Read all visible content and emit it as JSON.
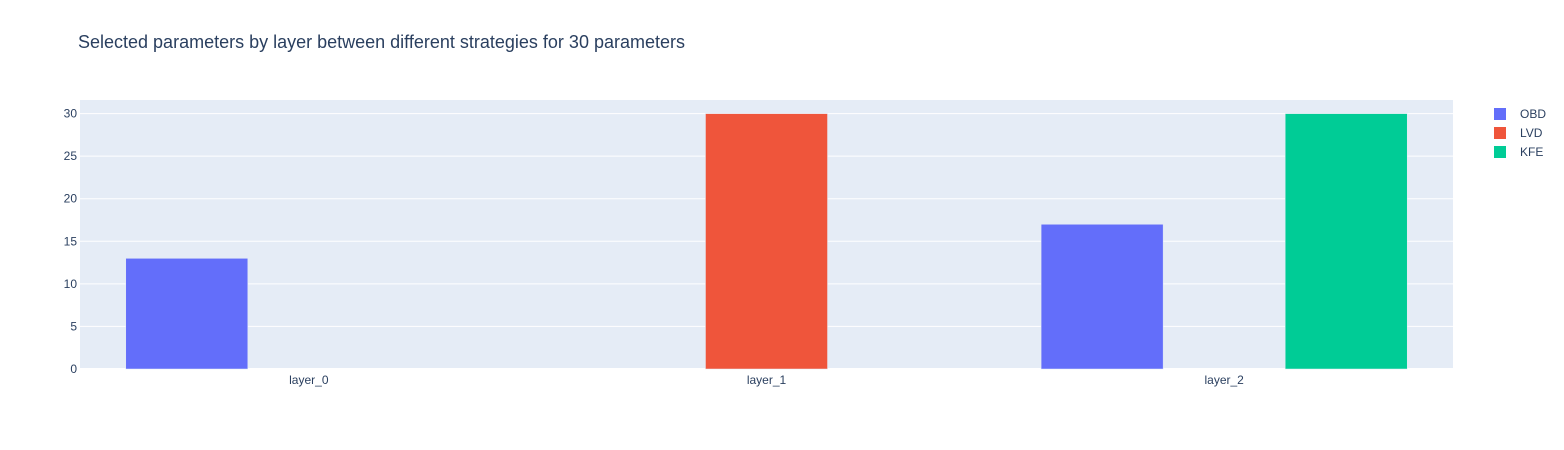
{
  "chart_data": {
    "type": "bar",
    "title": "Selected parameters by layer between different strategies for 30 parameters",
    "xlabel": "",
    "ylabel": "",
    "categories": [
      "layer_0",
      "layer_1",
      "layer_2"
    ],
    "series": [
      {
        "name": "OBD",
        "color": "#636efa",
        "values": [
          13,
          0,
          17
        ]
      },
      {
        "name": "LVD",
        "color": "#ef553b",
        "values": [
          0,
          30,
          0
        ]
      },
      {
        "name": "KFE",
        "color": "#00cc96",
        "values": [
          0,
          0,
          30
        ]
      }
    ],
    "ylim": [
      0,
      31.6
    ],
    "yticks": [
      0,
      5,
      10,
      15,
      20,
      25,
      30
    ],
    "grid": true,
    "legend_position": "top-right",
    "plot_background": "#e5ecf6"
  }
}
